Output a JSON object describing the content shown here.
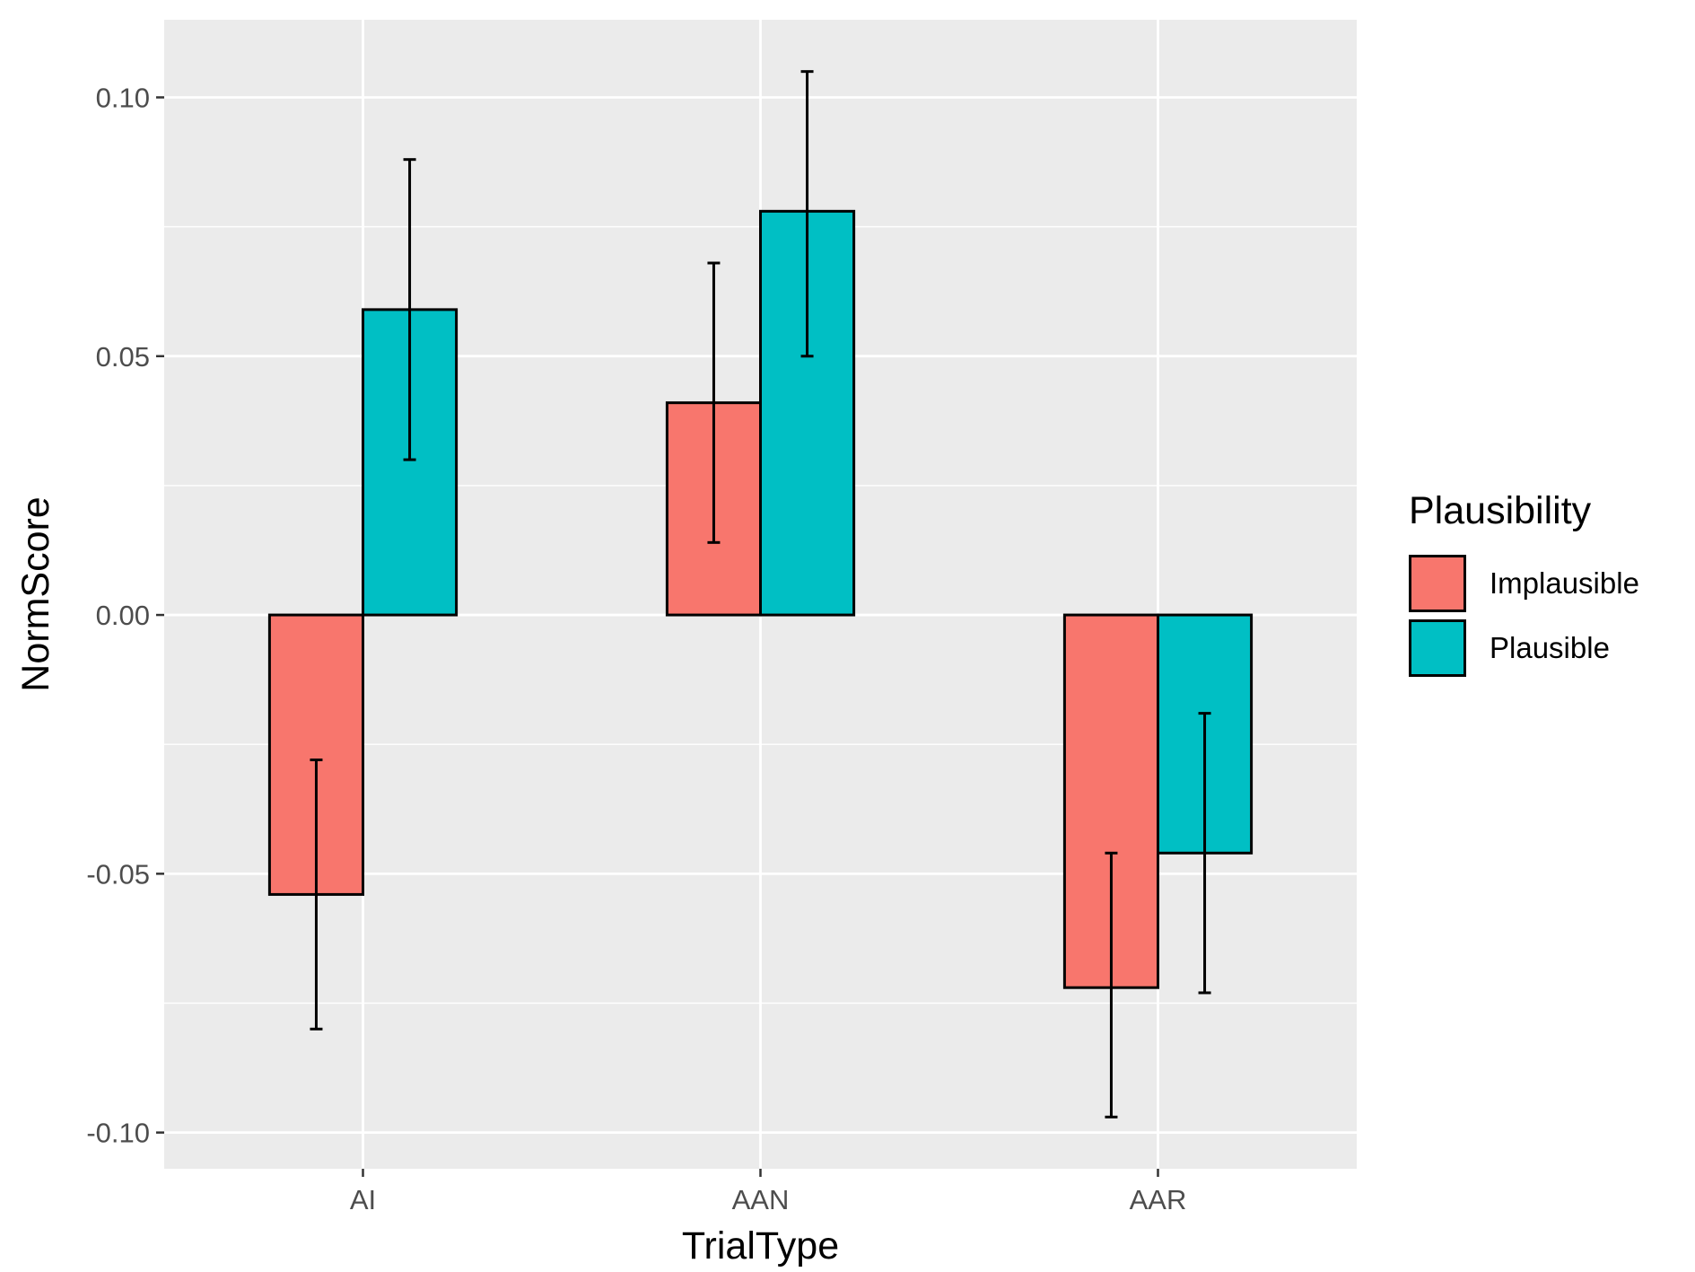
{
  "chart_data": {
    "type": "bar",
    "title": "",
    "xlabel": "TrialType",
    "ylabel": "NormScore",
    "categories": [
      "AI",
      "AAN",
      "AAR"
    ],
    "ylim": [
      -0.107,
      0.115
    ],
    "yticks": [
      -0.1,
      -0.05,
      0.0,
      0.05,
      0.1
    ],
    "ytick_labels": [
      "-0.10",
      "-0.05",
      "0.00",
      "0.05",
      "0.10"
    ],
    "grid": true,
    "legend": {
      "title": "Plausibility",
      "placement": "right"
    },
    "series": [
      {
        "name": "Implausible",
        "color": "#F8766D",
        "values": [
          -0.054,
          0.041,
          -0.072
        ],
        "error_low": [
          -0.08,
          0.014,
          -0.097
        ],
        "error_high": [
          -0.028,
          0.068,
          -0.046
        ]
      },
      {
        "name": "Plausible",
        "color": "#00BFC4",
        "values": [
          0.059,
          0.078,
          -0.046
        ],
        "error_low": [
          0.03,
          0.05,
          -0.073
        ],
        "error_high": [
          0.088,
          0.105,
          -0.019
        ]
      }
    ]
  }
}
